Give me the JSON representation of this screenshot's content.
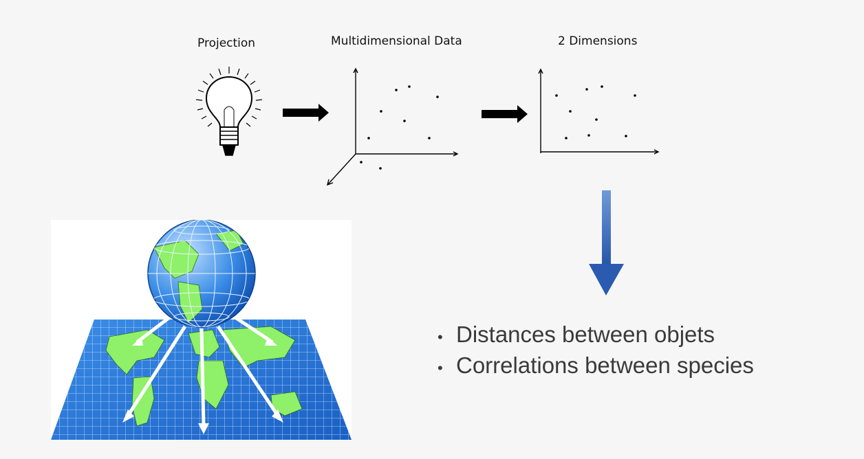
{
  "labels": {
    "projection": "Projection",
    "multidimensional": "Multidimensional Data",
    "two_dimensions": "2 Dimensions"
  },
  "bullets": [
    "Distances between objets",
    "Correlations between species"
  ],
  "icons": {
    "bulb": "light-bulb-icon",
    "globe": "globe-projection-illustration"
  },
  "colors": {
    "background": "#f6f6f6",
    "big_arrow": "#2f5fae",
    "text": "#3a3a3a",
    "map_blue": "#2a7ad8",
    "land_green": "#8ff06a"
  }
}
